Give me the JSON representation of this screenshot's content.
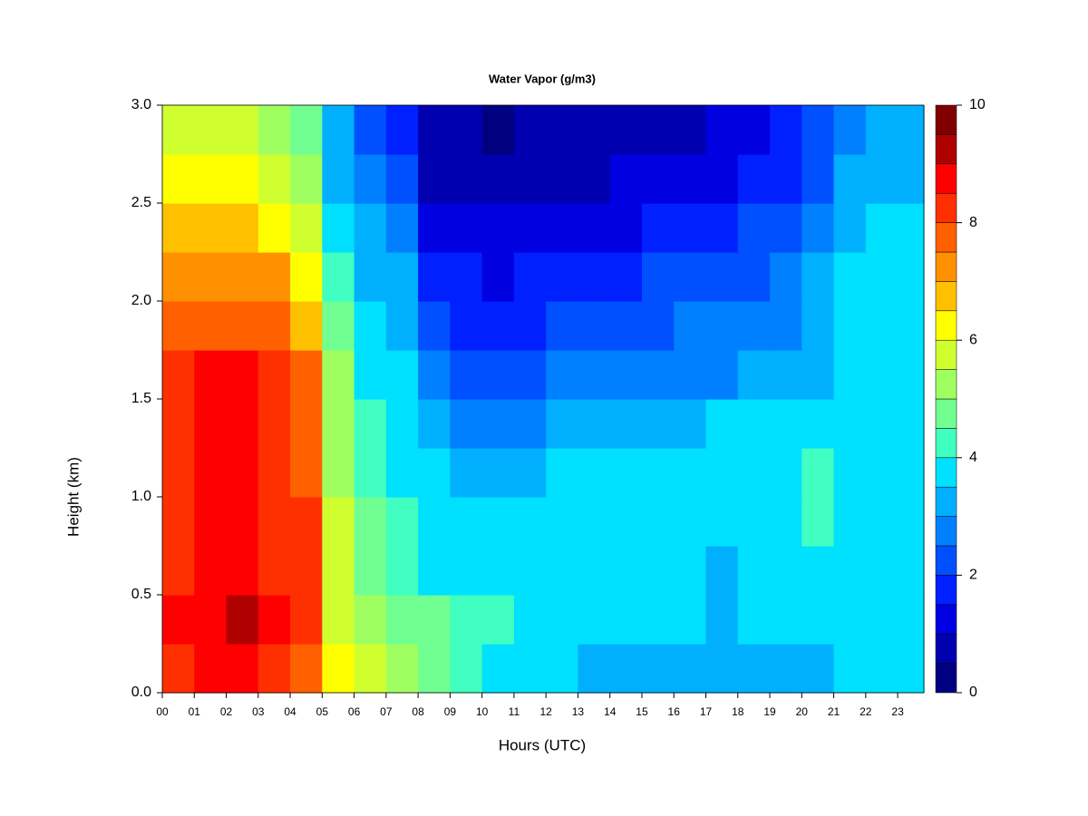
{
  "chart_data": {
    "type": "contour",
    "title": "Water Vapor (g/m3)",
    "x_label": "Hours (UTC)",
    "y_label": "Height (km)",
    "x": [
      0,
      1,
      2,
      3,
      4,
      5,
      6,
      7,
      8,
      9,
      10,
      11,
      12,
      13,
      14,
      15,
      16,
      17,
      18,
      19,
      20,
      21,
      22,
      23
    ],
    "y": [
      0,
      0.25,
      0.5,
      0.75,
      1,
      1.25,
      1.5,
      1.75,
      2,
      2.25,
      2.5,
      2.75
    ],
    "z": [
      [
        8,
        8.5,
        8.5,
        8,
        7.5,
        6,
        5.5,
        5,
        4.8,
        4.2,
        3.8,
        3.7,
        3.6,
        3.2,
        3.2,
        3.3,
        3.2,
        3,
        3,
        3,
        3.2,
        3.7,
        3.7,
        3.5
      ],
      [
        8.5,
        8.5,
        9,
        8.5,
        8,
        5.5,
        5,
        4.6,
        4.5,
        4.2,
        4,
        3.8,
        3.7,
        3.6,
        3.6,
        3.6,
        3.6,
        3.2,
        3.6,
        3.6,
        3.7,
        3.8,
        3.7,
        3.6
      ],
      [
        8,
        8.5,
        8.5,
        8,
        8,
        5.5,
        4.5,
        4,
        3.8,
        3.8,
        3.7,
        3.6,
        3.6,
        3.5,
        3.6,
        3.6,
        3.5,
        3.2,
        3.5,
        3.5,
        3.7,
        3.8,
        3.8,
        3.7
      ],
      [
        8,
        8.5,
        8.5,
        8,
        8,
        5.5,
        4.5,
        4,
        3.7,
        3.6,
        3.6,
        3.6,
        3.7,
        3.6,
        3.7,
        3.7,
        3.7,
        3.5,
        3.8,
        3.9,
        4,
        3.9,
        3.9,
        3.8
      ],
      [
        8,
        8.5,
        8.5,
        8.2,
        7.8,
        5.2,
        4.2,
        3.8,
        3.5,
        3.4,
        3.3,
        3.4,
        3.6,
        3.5,
        3.6,
        3.7,
        3.7,
        3.6,
        3.8,
        3.8,
        4,
        3.9,
        3.9,
        3.8
      ],
      [
        8,
        8.5,
        8.5,
        8,
        7.5,
        5,
        4,
        3.6,
        3,
        2.8,
        2.8,
        2.9,
        3,
        3.1,
        3.3,
        3.3,
        3.3,
        3.5,
        3.5,
        3.5,
        3.7,
        3.8,
        3.9,
        3.8
      ],
      [
        8,
        8.5,
        8.5,
        8,
        7.5,
        5,
        3.8,
        3.5,
        2.5,
        2.3,
        2.3,
        2.4,
        2.5,
        2.6,
        2.7,
        2.8,
        2.8,
        2.9,
        3,
        3.1,
        3.3,
        3.7,
        3.8,
        3.8
      ],
      [
        7.5,
        7.8,
        7.8,
        7.5,
        6.5,
        4.5,
        3.6,
        3.3,
        2,
        1.8,
        1.8,
        1.9,
        2,
        2.2,
        2.3,
        2.4,
        2.5,
        2.6,
        2.6,
        2.8,
        3.2,
        3.6,
        3.7,
        3.7
      ],
      [
        7,
        7.2,
        7.2,
        7,
        6,
        4,
        3.3,
        3,
        1.6,
        1.5,
        1.4,
        1.5,
        1.6,
        1.7,
        1.9,
        2,
        2.2,
        2.3,
        2.3,
        2.5,
        3,
        3.5,
        3.7,
        3.6
      ],
      [
        6.5,
        6.8,
        6.5,
        6.2,
        5.5,
        3.6,
        3,
        2.6,
        1.2,
        1,
        1,
        1,
        1.1,
        1.3,
        1.4,
        1.5,
        1.7,
        1.9,
        2,
        2.2,
        2.6,
        3.3,
        3.7,
        3.5
      ],
      [
        6,
        6.2,
        6,
        5.8,
        5,
        3.4,
        2.6,
        2.2,
        0.9,
        0.7,
        0.6,
        0.7,
        0.8,
        0.9,
        1,
        1.1,
        1.2,
        1.4,
        1.6,
        1.8,
        2.2,
        3,
        3.4,
        3.3
      ],
      [
        5.5,
        5.8,
        5.6,
        5.4,
        4.5,
        3,
        2.3,
        1.8,
        0.6,
        0.5,
        0.4,
        0.5,
        0.6,
        0.7,
        0.8,
        0.8,
        0.9,
        1,
        1.2,
        1.5,
        2,
        2.8,
        3,
        3
      ]
    ],
    "xlim": [
      0,
      23.82
    ],
    "ylim": [
      0,
      3
    ],
    "xticks": [
      {
        "value": 0,
        "label": "00"
      },
      {
        "value": 1,
        "label": "01"
      },
      {
        "value": 2,
        "label": "02"
      },
      {
        "value": 3,
        "label": "03"
      },
      {
        "value": 4,
        "label": "04"
      },
      {
        "value": 5,
        "label": "05"
      },
      {
        "value": 6,
        "label": "06"
      },
      {
        "value": 7,
        "label": "07"
      },
      {
        "value": 8,
        "label": "08"
      },
      {
        "value": 9,
        "label": "09"
      },
      {
        "value": 10,
        "label": "10"
      },
      {
        "value": 11,
        "label": "11"
      },
      {
        "value": 12,
        "label": "12"
      },
      {
        "value": 13,
        "label": "13"
      },
      {
        "value": 14,
        "label": "14"
      },
      {
        "value": 15,
        "label": "15"
      },
      {
        "value": 16,
        "label": "16"
      },
      {
        "value": 17,
        "label": "17"
      },
      {
        "value": 18,
        "label": "18"
      },
      {
        "value": 19,
        "label": "19"
      },
      {
        "value": 20,
        "label": "20"
      },
      {
        "value": 21,
        "label": "21"
      },
      {
        "value": 22,
        "label": "22"
      },
      {
        "value": 23,
        "label": "23"
      }
    ],
    "yticks": [
      {
        "value": 0,
        "label": "0.0"
      },
      0.5,
      {
        "value": 1,
        "label": "1.0"
      },
      1.5,
      {
        "value": 2,
        "label": "2.0"
      },
      2.5,
      {
        "value": 3,
        "label": "3.0"
      }
    ],
    "levels": [
      0,
      0.5,
      1,
      1.5,
      2,
      2.5,
      3,
      3.5,
      4,
      4.5,
      5,
      5.5,
      6,
      6.5,
      7,
      7.5,
      8,
      8.5,
      9,
      9.5,
      10
    ],
    "colors": [
      "#000080",
      "#0000B0",
      "#0000E0",
      "#0020FF",
      "#0050FF",
      "#0080FF",
      "#00B0FF",
      "#00E0FF",
      "#40FFC0",
      "#70FF90",
      "#A0FF60",
      "#D0FF30",
      "#FFFF00",
      "#FFC000",
      "#FF9000",
      "#FF6000",
      "#FF3000",
      "#FF0000",
      "#B00000",
      "#800000"
    ],
    "cticks": [
      0,
      2,
      4,
      6,
      8,
      10
    ]
  }
}
